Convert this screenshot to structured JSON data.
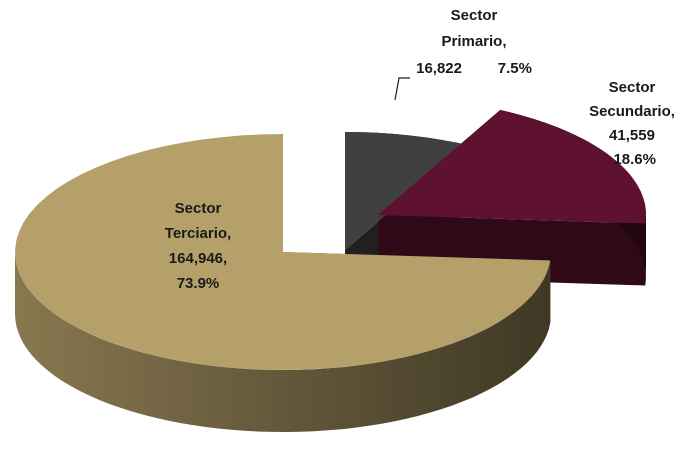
{
  "chart_data": {
    "type": "pie3d",
    "categories": [
      "Sector Primario,",
      "Sector Secundario,",
      "Sector Terciario,"
    ],
    "values": [
      16822,
      41559,
      164946
    ],
    "value_labels": [
      "16,822",
      "41,559",
      "164,946,"
    ],
    "shares": [
      7.5,
      18.6,
      73.9
    ],
    "share_labels": [
      "7.5%",
      "18.6%",
      "73.9%"
    ],
    "colors": [
      "#404040",
      "#5e1230",
      "#b5a06a"
    ]
  }
}
